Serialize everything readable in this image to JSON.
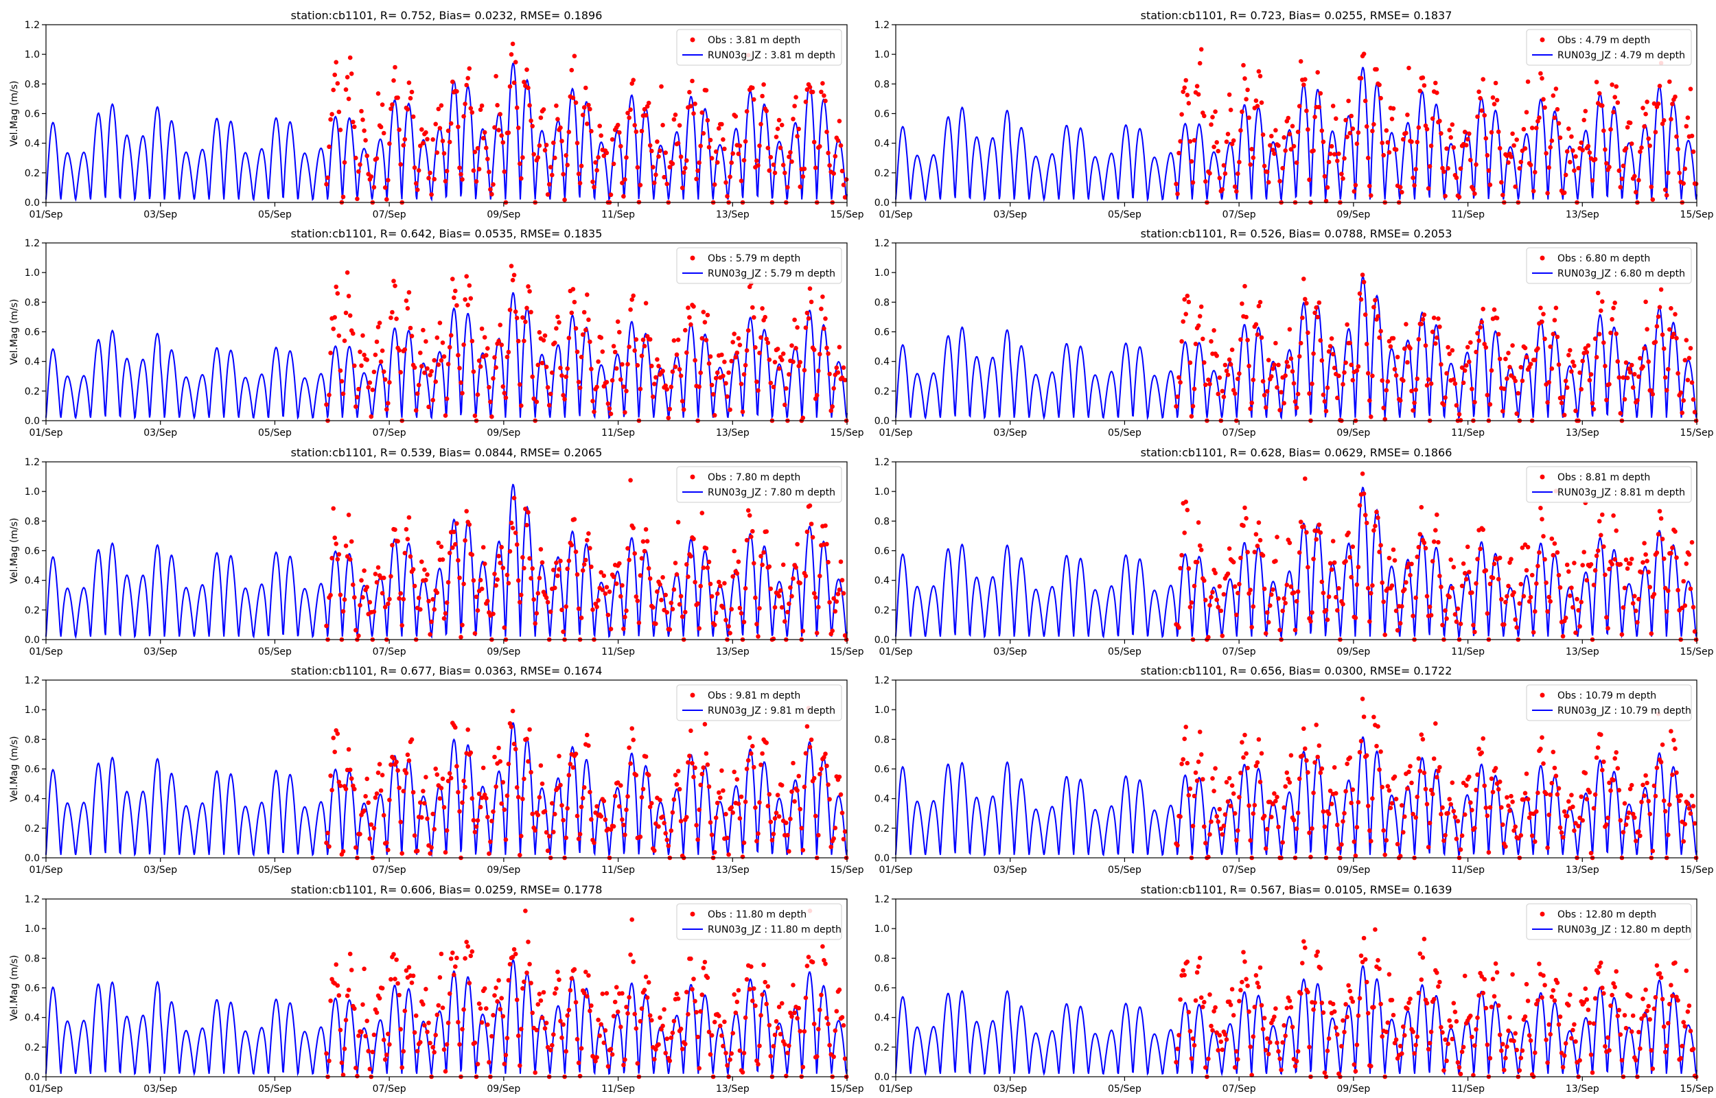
{
  "chart_data": [
    {
      "type": "line+scatter",
      "title": "station:cb1101, R= 0.752, Bias= 0.0232, RMSE= 0.1896",
      "ylabel": "Vel.Mag (m/s)",
      "obs_label": "Obs : 3.81 m depth",
      "model_label": "RUN03g_JZ : 3.81 m depth",
      "depth_m": 3.81,
      "seed": 11,
      "model_amp": [
        0.58,
        0.82,
        0.6,
        0.98
      ],
      "obs_amp": [
        0.62,
        0.82,
        1.05,
        1.0
      ]
    },
    {
      "type": "line+scatter",
      "title": "station:cb1101, R= 0.723, Bias= 0.0255, RMSE= 0.1837",
      "ylabel": "",
      "obs_label": "Obs : 4.79 m depth",
      "model_label": "RUN03g_JZ : 4.79 m depth",
      "depth_m": 4.79,
      "seed": 23,
      "model_amp": [
        0.55,
        0.8,
        0.55,
        0.95
      ],
      "obs_amp": [
        0.6,
        0.85,
        1.05,
        1.0
      ]
    },
    {
      "type": "line+scatter",
      "title": "station:cb1101, R= 0.642, Bias= 0.0535, RMSE= 0.1835",
      "ylabel": "Vel.Mag (m/s)",
      "obs_label": "Obs : 5.79 m depth",
      "model_label": "RUN03g_JZ : 5.79 m depth",
      "depth_m": 5.79,
      "seed": 37,
      "model_amp": [
        0.52,
        0.76,
        0.52,
        0.9
      ],
      "obs_amp": [
        0.6,
        0.85,
        0.95,
        0.98
      ]
    },
    {
      "type": "line+scatter",
      "title": "station:cb1101, R= 0.526, Bias= 0.0788, RMSE= 0.2053",
      "ylabel": "",
      "obs_label": "Obs : 6.80 m depth",
      "model_label": "RUN03g_JZ : 6.80 m depth",
      "depth_m": 6.8,
      "seed": 41,
      "model_amp": [
        0.55,
        0.78,
        0.55,
        1.02
      ],
      "obs_amp": [
        0.55,
        0.8,
        0.88,
        0.92
      ]
    },
    {
      "type": "line+scatter",
      "title": "station:cb1101, R= 0.539, Bias= 0.0844, RMSE= 0.2065",
      "ylabel": "Vel.Mag (m/s)",
      "obs_label": "Obs : 7.80 m depth",
      "model_label": "RUN03g_JZ : 7.80 m depth",
      "depth_m": 7.8,
      "seed": 53,
      "model_amp": [
        0.6,
        0.78,
        0.62,
        1.1
      ],
      "obs_amp": [
        0.55,
        0.8,
        0.85,
        0.92
      ]
    },
    {
      "type": "line+scatter",
      "title": "station:cb1101, R= 0.628, Bias= 0.0629, RMSE= 0.1866",
      "ylabel": "",
      "obs_label": "Obs : 8.81 m depth",
      "model_label": "RUN03g_JZ : 8.81 m depth",
      "depth_m": 8.81,
      "seed": 67,
      "model_amp": [
        0.62,
        0.75,
        0.6,
        1.08
      ],
      "obs_amp": [
        0.55,
        0.85,
        0.9,
        1.0
      ]
    },
    {
      "type": "line+scatter",
      "title": "station:cb1101, R= 0.677, Bias= 0.0363, RMSE= 0.1674",
      "ylabel": "Vel.Mag (m/s)",
      "obs_label": "Obs : 9.81 m depth",
      "model_label": "RUN03g_JZ : 9.81 m depth",
      "depth_m": 9.81,
      "seed": 79,
      "model_amp": [
        0.64,
        0.8,
        0.62,
        0.95
      ],
      "obs_amp": [
        0.55,
        0.8,
        0.88,
        0.95
      ]
    },
    {
      "type": "line+scatter",
      "title": "station:cb1101, R= 0.656, Bias= 0.0300, RMSE= 0.1722",
      "ylabel": "",
      "obs_label": "Obs : 10.79 m depth",
      "model_label": "RUN03g_JZ : 10.79 m depth",
      "depth_m": 10.79,
      "seed": 83,
      "model_amp": [
        0.66,
        0.72,
        0.58,
        0.85
      ],
      "obs_amp": [
        0.55,
        0.8,
        0.85,
        0.94
      ]
    },
    {
      "type": "line+scatter",
      "title": "station:cb1101, R= 0.606, Bias= 0.0259, RMSE= 0.1778",
      "ylabel": "Vel.Mag (m/s)",
      "obs_label": "Obs : 11.80 m depth",
      "model_label": "RUN03g_JZ : 11.80 m depth",
      "depth_m": 11.8,
      "seed": 97,
      "model_amp": [
        0.65,
        0.72,
        0.55,
        0.82
      ],
      "obs_amp": [
        0.55,
        0.8,
        0.85,
        0.98
      ]
    },
    {
      "type": "line+scatter",
      "title": "station:cb1101, R= 0.567, Bias= 0.0105, RMSE= 0.1639",
      "ylabel": "",
      "obs_label": "Obs : 12.80 m depth",
      "model_label": "RUN03g_JZ : 12.80 m depth",
      "depth_m": 12.8,
      "seed": 101,
      "model_amp": [
        0.58,
        0.66,
        0.52,
        0.78
      ],
      "obs_amp": [
        0.55,
        0.8,
        0.85,
        0.88
      ]
    }
  ],
  "axes": {
    "xlim": [
      "01/Sep",
      "15/Sep"
    ],
    "xticks": [
      "01/Sep",
      "03/Sep",
      "05/Sep",
      "07/Sep",
      "09/Sep",
      "11/Sep",
      "13/Sep",
      "15/Sep"
    ],
    "xtick_days": [
      0,
      2,
      4,
      6,
      8,
      10,
      12,
      14
    ],
    "ylim": [
      0.0,
      1.2
    ],
    "yticks": [
      "0.0",
      "0.2",
      "0.4",
      "0.6",
      "0.8",
      "1.0",
      "1.2"
    ],
    "obs_start_day": 4.9,
    "grid": false,
    "legend_position": "top-right"
  },
  "colors": {
    "obs": "#ff0000",
    "model": "#0000ff",
    "axis": "#000000",
    "text": "#000000"
  }
}
